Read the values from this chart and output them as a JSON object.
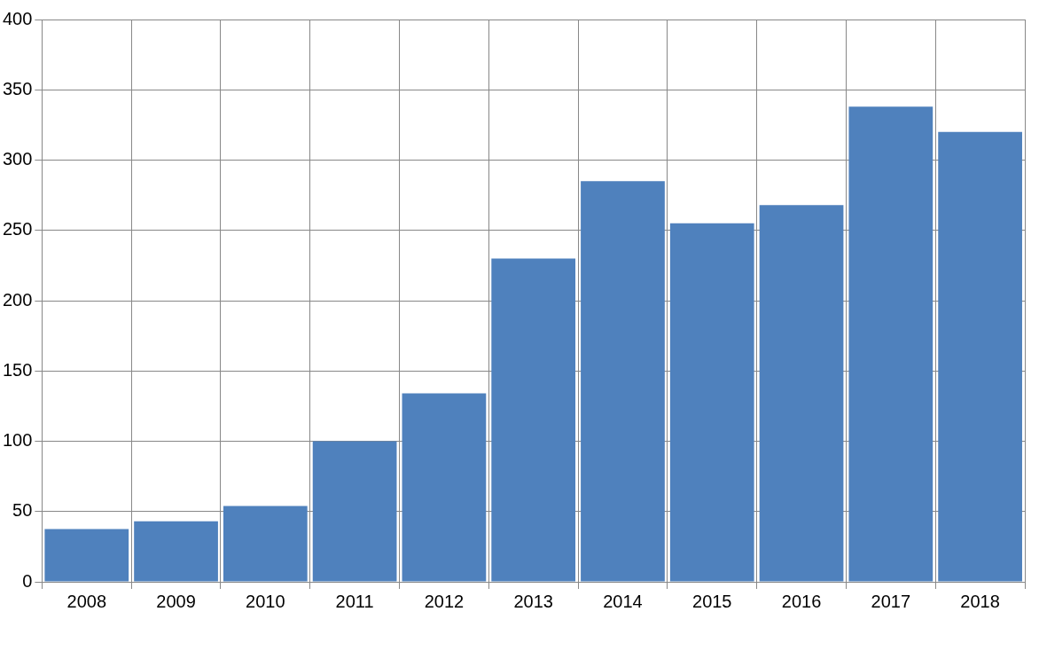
{
  "chart_data": {
    "type": "bar",
    "categories": [
      "2008",
      "2009",
      "2010",
      "2011",
      "2012",
      "2013",
      "2014",
      "2015",
      "2016",
      "2017",
      "2018"
    ],
    "values": [
      37.5,
      43,
      54,
      100,
      134,
      230,
      285,
      255,
      268,
      338,
      320
    ],
    "color": "#4f81bd",
    "ylim": [
      0,
      400
    ],
    "yticks": [
      0,
      50,
      100,
      150,
      200,
      250,
      300,
      350,
      400
    ],
    "grid": true
  }
}
